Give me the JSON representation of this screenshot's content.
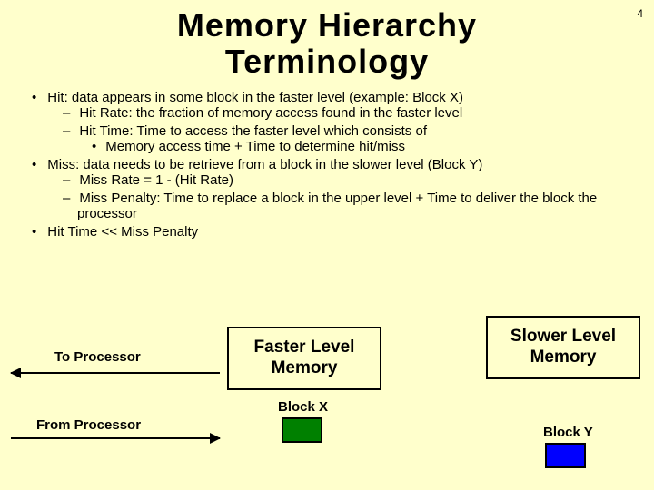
{
  "page_number": "4",
  "title_line1": "Memory Hierarchy",
  "title_line2": "Terminology",
  "bullets": {
    "hit": "Hit: data appears in some block in the faster level (example: Block X)",
    "hit_rate": "Hit Rate: the fraction of memory access found in the faster level",
    "hit_time": "Hit Time: Time to access the faster level which consists of",
    "hit_time_sub": "Memory access time + Time to determine hit/miss",
    "miss": "Miss: data needs to be retrieve from a block in the slower level (Block Y)",
    "miss_rate": "Miss Rate  = 1 - (Hit Rate)",
    "miss_penalty": "Miss Penalty: Time to replace a block in the upper level  + Time to deliver the block the processor",
    "compare": "Hit Time << Miss Penalty"
  },
  "diagram": {
    "to_processor": "To Processor",
    "from_processor": "From Processor",
    "faster_label": "Faster Level Memory",
    "slower_label": "Slower Level Memory",
    "block_x": "Block X",
    "block_y": "Block Y",
    "colors": {
      "background": "#ffffcc",
      "block_x_fill": "#008000",
      "block_y_fill": "#0000ff",
      "box_border": "#000000"
    }
  }
}
